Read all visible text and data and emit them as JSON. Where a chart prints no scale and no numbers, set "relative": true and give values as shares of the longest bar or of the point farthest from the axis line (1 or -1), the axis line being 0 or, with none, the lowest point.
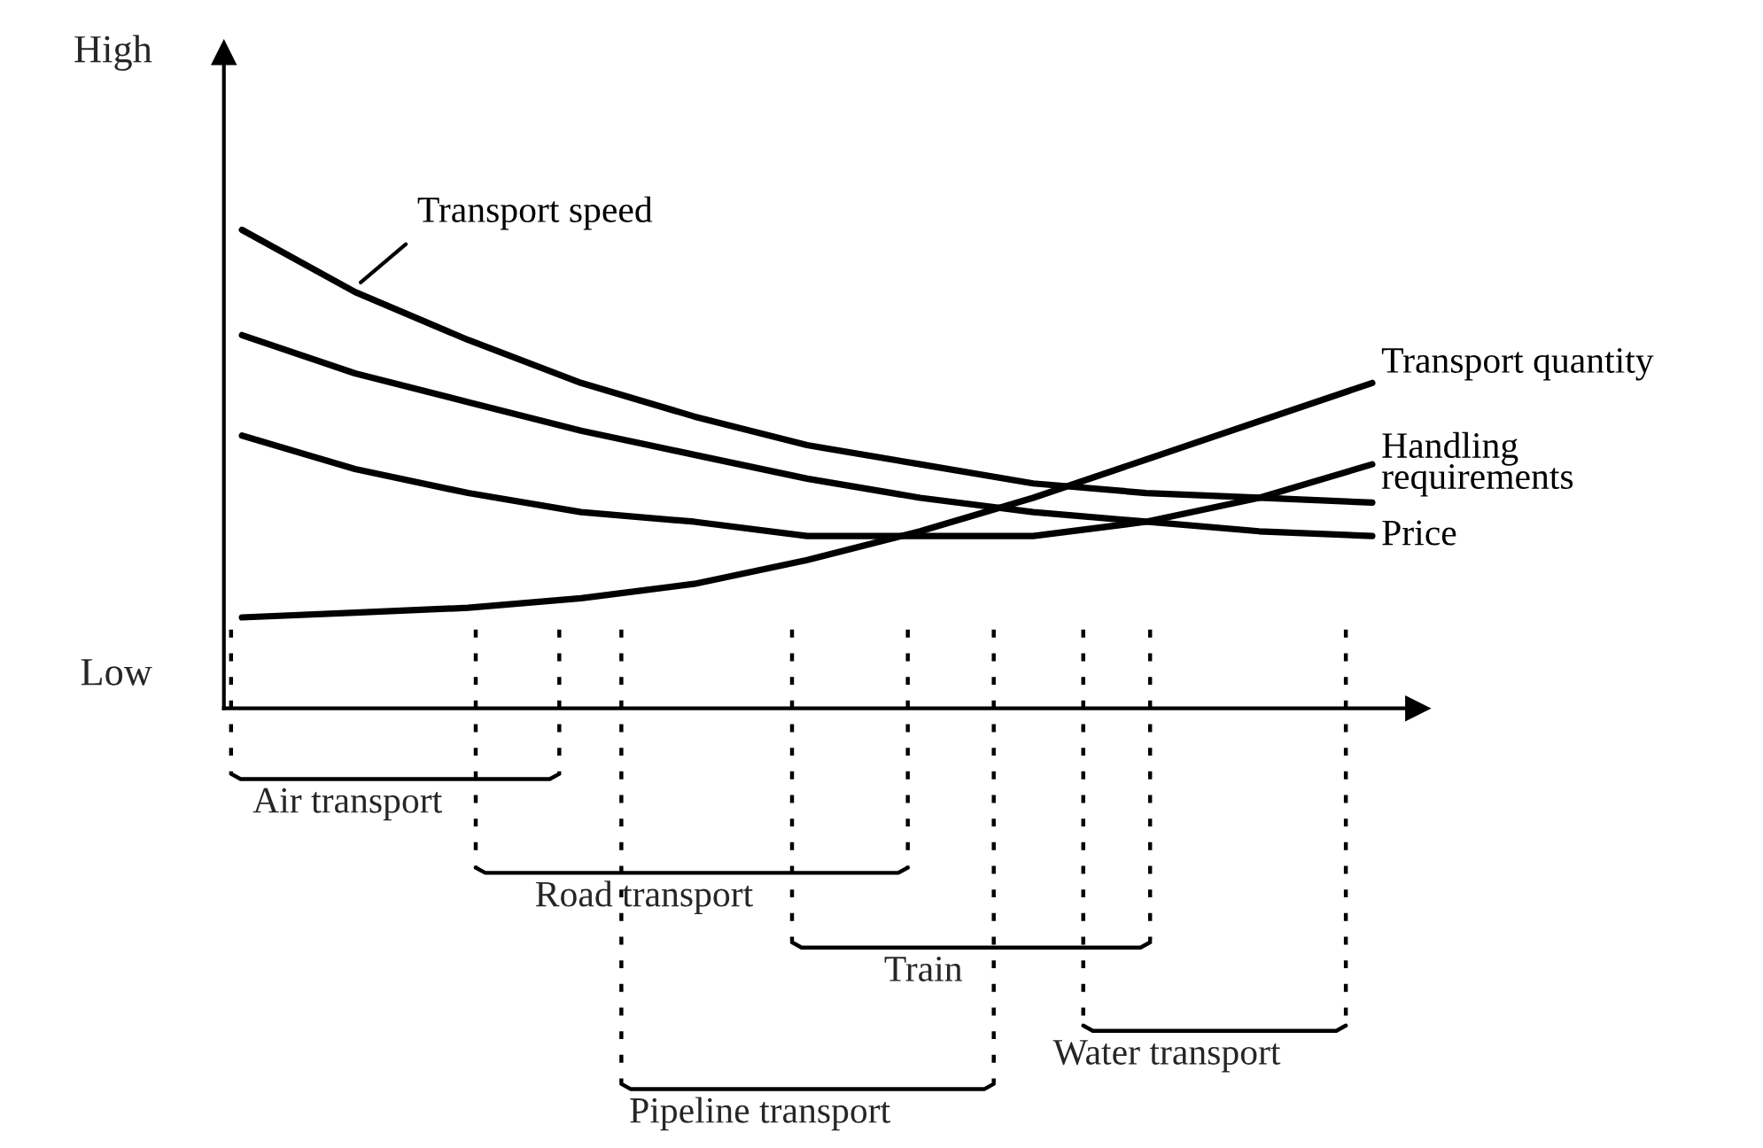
{
  "chart_data": {
    "type": "line",
    "relative": true,
    "categories": [
      null,
      null,
      null,
      null,
      null,
      null,
      null,
      null,
      null,
      null,
      null
    ],
    "series": [
      {
        "name": "Transport speed",
        "color": "#000000",
        "values": [
          1,
          0.87,
          0.77,
          0.68,
          0.61,
          0.55,
          0.51,
          0.47,
          0.45,
          0.44,
          0.43
        ]
      },
      {
        "name": "Transport quantity",
        "color": "#000000",
        "values": [
          0.19,
          0.2,
          0.21,
          0.23,
          0.26,
          0.31,
          0.37,
          0.44,
          0.52,
          0.6,
          0.68
        ]
      },
      {
        "name": "Handling requirements",
        "color": "#000000",
        "values": [
          0.57,
          0.5,
          0.45,
          0.41,
          0.39,
          0.36,
          0.36,
          0.36,
          0.39,
          0.44,
          0.51
        ]
      },
      {
        "name": "Price",
        "color": "#000000",
        "values": [
          0.78,
          0.7,
          0.64,
          0.58,
          0.53,
          0.48,
          0.44,
          0.41,
          0.39,
          0.37,
          0.36
        ]
      }
    ],
    "annotations": [
      "High",
      "Low",
      "Air transport",
      "Road transport",
      "Train",
      "Water transport",
      "Pipeline transport"
    ],
    "marker": "none",
    "line_style": "solid"
  }
}
